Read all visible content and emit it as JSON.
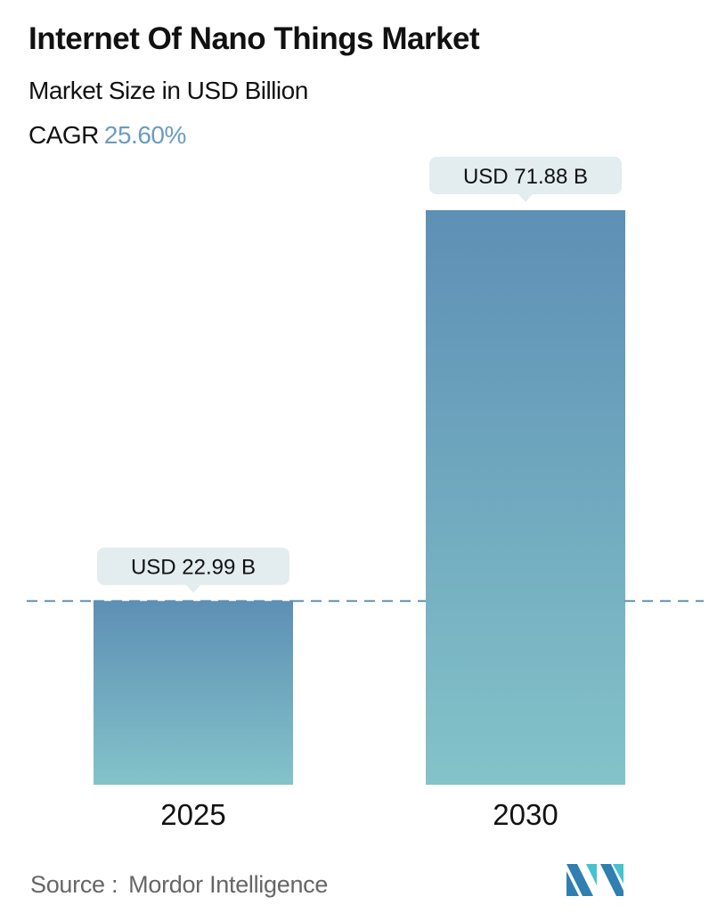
{
  "header": {
    "title": "Internet Of Nano Things Market",
    "subtitle": "Market Size in USD Billion",
    "cagr_label": "CAGR",
    "cagr_value": "25.60%"
  },
  "chart_data": {
    "type": "bar",
    "categories": [
      "2025",
      "2030"
    ],
    "values": [
      22.99,
      71.88
    ],
    "data_labels": [
      "USD 22.99 B",
      "USD 71.88 B"
    ],
    "title": "Internet Of Nano Things Market",
    "ylabel": "Market Size in USD Billion",
    "grid": false,
    "reference_line": 22.99,
    "colors": {
      "bar_top": "#5e8fb5",
      "bar_bottom": "#83c3c9",
      "label_bg": "#e3ecef",
      "accent": "#6a9cc0"
    }
  },
  "footer": {
    "source_label": "Source :",
    "source_value": "Mordor Intelligence"
  }
}
